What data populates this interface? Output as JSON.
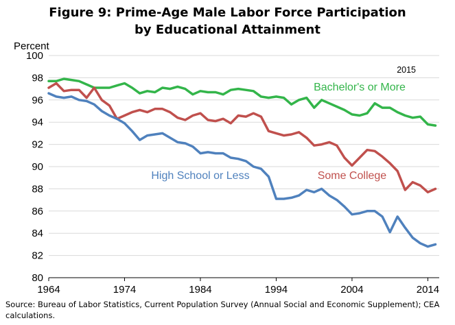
{
  "chart_data": {
    "type": "line",
    "title_line1": "Figure 9: Prime-Age Male Labor Force Participation",
    "title_line2": "by Educational Attainment",
    "ylabel": "Percent",
    "xlabel": "",
    "year_note": "2015",
    "source": "Source: Bureau of Labor Statistics, Current Population Survey (Annual Social and Economic Supplement); CEA calculations.",
    "x": [
      1964,
      1965,
      1966,
      1967,
      1968,
      1969,
      1970,
      1971,
      1972,
      1973,
      1974,
      1975,
      1976,
      1977,
      1978,
      1979,
      1980,
      1981,
      1982,
      1983,
      1984,
      1985,
      1986,
      1987,
      1988,
      1989,
      1990,
      1991,
      1992,
      1993,
      1994,
      1995,
      1996,
      1997,
      1998,
      1999,
      2000,
      2001,
      2002,
      2003,
      2004,
      2005,
      2006,
      2007,
      2008,
      2009,
      2010,
      2011,
      2012,
      2013,
      2014,
      2015
    ],
    "xlim": [
      1964,
      2015.5
    ],
    "ylim": [
      80,
      100
    ],
    "xticks": [
      1964,
      1974,
      1984,
      1994,
      2004,
      2014
    ],
    "yticks": [
      80,
      82,
      84,
      86,
      88,
      90,
      92,
      94,
      96,
      98,
      100
    ],
    "grid": true,
    "series": [
      {
        "name": "Bachelor's or More",
        "color": "#33B54A",
        "values": [
          97.7,
          97.7,
          97.9,
          97.8,
          97.7,
          97.4,
          97.1,
          97.1,
          97.1,
          97.3,
          97.5,
          97.1,
          96.6,
          96.8,
          96.7,
          97.1,
          97.0,
          97.2,
          97.0,
          96.5,
          96.8,
          96.7,
          96.7,
          96.5,
          96.9,
          97.0,
          96.9,
          96.8,
          96.3,
          96.2,
          96.3,
          96.2,
          95.6,
          96.0,
          96.2,
          95.3,
          96.0,
          95.7,
          95.4,
          95.1,
          94.7,
          94.6,
          94.8,
          95.7,
          95.3,
          95.3,
          94.9,
          94.6,
          94.4,
          94.5,
          93.8,
          93.7
        ],
        "label_x": 2005,
        "label_y": 96.85
      },
      {
        "name": "Some College",
        "color": "#C0504D",
        "values": [
          97.1,
          97.5,
          96.8,
          96.9,
          96.9,
          96.2,
          97.1,
          96.0,
          95.5,
          94.3,
          94.6,
          94.9,
          95.1,
          94.9,
          95.2,
          95.2,
          94.9,
          94.4,
          94.2,
          94.6,
          94.8,
          94.2,
          94.1,
          94.3,
          93.9,
          94.6,
          94.5,
          94.8,
          94.5,
          93.2,
          93.0,
          92.8,
          92.9,
          93.1,
          92.6,
          91.9,
          92.0,
          92.2,
          91.9,
          90.8,
          90.1,
          90.8,
          91.5,
          91.4,
          90.9,
          90.3,
          89.6,
          87.9,
          88.6,
          88.3,
          87.7,
          88.0
        ],
        "label_x": 2004,
        "label_y": 88.9
      },
      {
        "name": "High School or Less",
        "color": "#4F81BD",
        "values": [
          96.6,
          96.3,
          96.2,
          96.3,
          96.0,
          95.9,
          95.6,
          95.0,
          94.6,
          94.3,
          93.9,
          93.2,
          92.4,
          92.8,
          92.9,
          93.0,
          92.6,
          92.2,
          92.1,
          91.8,
          91.2,
          91.3,
          91.2,
          91.2,
          90.8,
          90.7,
          90.5,
          90.0,
          89.8,
          89.1,
          87.1,
          87.1,
          87.2,
          87.4,
          87.9,
          87.7,
          88.0,
          87.4,
          87.0,
          86.4,
          85.7,
          85.8,
          86.0,
          86.0,
          85.5,
          84.1,
          85.5,
          84.5,
          83.6,
          83.1,
          82.8,
          83.0
        ],
        "label_x": 1984,
        "label_y": 88.9
      }
    ]
  }
}
